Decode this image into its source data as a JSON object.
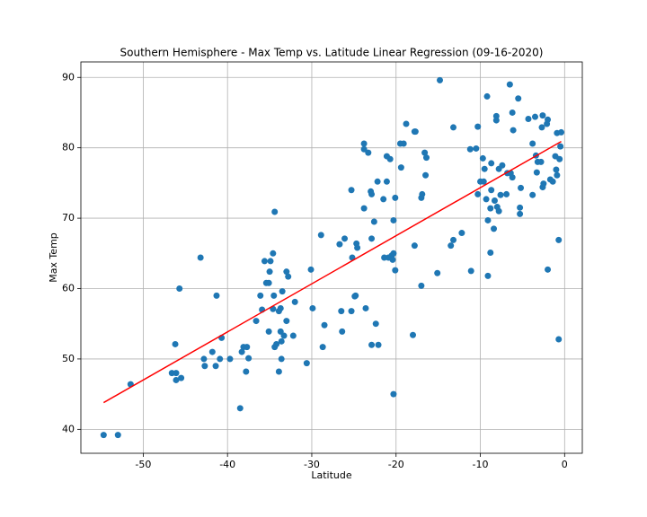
{
  "chart_data": {
    "type": "scatter",
    "title": "Southern Hemisphere - Max Temp vs. Latitude Linear Regression (09-16-2020)",
    "xlabel": "Latitude",
    "ylabel": "Max Temp",
    "xlim": [
      -57.4,
      2.1
    ],
    "ylim": [
      36.6,
      92.2
    ],
    "xticks": [
      -50,
      -40,
      -30,
      -20,
      -10,
      0
    ],
    "yticks": [
      40,
      50,
      60,
      70,
      80,
      90
    ],
    "grid": true,
    "color": "#1f77b4",
    "x": [
      -54.7,
      -53,
      -51.5,
      -46.6,
      -46.1,
      -46.2,
      -45.7,
      -46.1,
      -45.5,
      -43.2,
      -42.8,
      -42.7,
      -41.8,
      -41.4,
      -41.3,
      -40.9,
      -40.7,
      -39.7,
      -38.5,
      -38.3,
      -38.1,
      -37.7,
      -37.8,
      -37.5,
      -36.6,
      -36.1,
      -35.9,
      -35.6,
      -35.4,
      -35.1,
      -35.1,
      -35,
      -34.9,
      -34.6,
      -34.4,
      -34.6,
      -34.5,
      -34.4,
      -34.2,
      -33.9,
      -33.9,
      -33.7,
      -33.7,
      -33.6,
      -33.6,
      -33.5,
      -33.3,
      -33,
      -32.8,
      -33,
      -32.2,
      -32,
      -30.6,
      -30.1,
      -29.9,
      -28.9,
      -28.7,
      -28.5,
      -26.7,
      -26.5,
      -26.4,
      -26.1,
      -25.3,
      -25.3,
      -25.2,
      -24.9,
      -24.8,
      -24.7,
      -24.6,
      -23.8,
      -23.8,
      -23.8,
      -23.6,
      -23.3,
      -23,
      -22.9,
      -22.9,
      -22.9,
      -22.6,
      -22.4,
      -22.2,
      -22.1,
      -21.5,
      -21.4,
      -21.1,
      -21.1,
      -20.9,
      -20.7,
      -20.5,
      -20.4,
      -20.3,
      -20.3,
      -20.1,
      -20.1,
      -20.3,
      -19.5,
      -19.4,
      -19.1,
      -18.8,
      -18,
      -17.8,
      -17.7,
      -17.8,
      -17,
      -16.9,
      -17,
      -16.6,
      -16.4,
      -16.5,
      -15.1,
      -14.8,
      -13.5,
      -13.2,
      -13.2,
      -12.2,
      -11.2,
      -11.1,
      -10.5,
      -10.3,
      -10.3,
      -10,
      -9.7,
      -9.6,
      -9.5,
      -9.3,
      -9.2,
      -9.1,
      -9.1,
      -8.8,
      -8.8,
      -8.7,
      -8.7,
      -8.4,
      -8.3,
      -8.1,
      -8.1,
      -8,
      -7.8,
      -7.8,
      -7.6,
      -7.4,
      -6.9,
      -6.8,
      -6.5,
      -6.4,
      -6.2,
      -6.2,
      -6.1,
      -5.5,
      -5.3,
      -5.3,
      -5.2,
      -4.3,
      -3.8,
      -3.8,
      -3.5,
      -3.4,
      -3.3,
      -3.2,
      -2.8,
      -2.7,
      -2.6,
      -2.6,
      -2.5,
      -2.1,
      -2,
      -2,
      -1.7,
      -1.4,
      -1.1,
      -1,
      -0.9,
      -0.9,
      -0.7,
      -0.7,
      -0.6,
      -0.4,
      -0.5
    ],
    "values": [
      39.2,
      39.2,
      46.4,
      48,
      48,
      52.1,
      60,
      47,
      47.3,
      64.4,
      50,
      49,
      51,
      49,
      59,
      50,
      53,
      50,
      43,
      51,
      51.7,
      51.7,
      48.2,
      50.1,
      55.4,
      59,
      57,
      63.9,
      60.8,
      60.8,
      53.9,
      62.4,
      63.9,
      65,
      70.9,
      57.1,
      59,
      51.7,
      52.1,
      48.2,
      56.8,
      57.2,
      53.9,
      52.5,
      50,
      59.6,
      53.3,
      62.4,
      61.7,
      55.4,
      53.3,
      58.1,
      49.4,
      62.7,
      57.2,
      67.6,
      51.7,
      54.8,
      66.3,
      56.8,
      53.9,
      67.1,
      56.8,
      74,
      64.4,
      58.9,
      59,
      66.4,
      65.8,
      80.6,
      79.8,
      71.4,
      57.2,
      79.3,
      73.8,
      73.4,
      67.1,
      52,
      69.5,
      55,
      75.2,
      52,
      72.7,
      64.4,
      78.8,
      75.2,
      64.4,
      78.4,
      64.7,
      64.1,
      69.7,
      65,
      62.6,
      72.9,
      45,
      80.6,
      77.2,
      80.6,
      83.4,
      53.4,
      82.3,
      82.3,
      66.1,
      72.9,
      73.4,
      60.4,
      79.3,
      78.6,
      76.1,
      62.2,
      89.6,
      66.1,
      66.9,
      82.9,
      67.9,
      79.8,
      62.5,
      79.9,
      83,
      73.4,
      75.2,
      78.5,
      75.2,
      77,
      72.7,
      87.3,
      69.7,
      61.8,
      65.1,
      71.4,
      74,
      77.8,
      68.5,
      72.5,
      84.5,
      83.9,
      71.6,
      71,
      77,
      73.3,
      77.5,
      73.4,
      76.4,
      89,
      76.4,
      75.8,
      85,
      82.5,
      87,
      70.6,
      71.5,
      74.3,
      84.1,
      73.3,
      80.6,
      84.4,
      78.9,
      76.5,
      78,
      78,
      82.9,
      84.6,
      74.4,
      74.9,
      83.4,
      84,
      62.7,
      75.5,
      75.2,
      78.8,
      76.9,
      76.1,
      82.1,
      66.9,
      52.8,
      78.4,
      82.2,
      80.2
    ],
    "regression_line": {
      "type": "line",
      "color": "#ff0000",
      "x": [
        -54.7,
        -0.4
      ],
      "values": [
        43.8,
        80.9
      ]
    }
  }
}
